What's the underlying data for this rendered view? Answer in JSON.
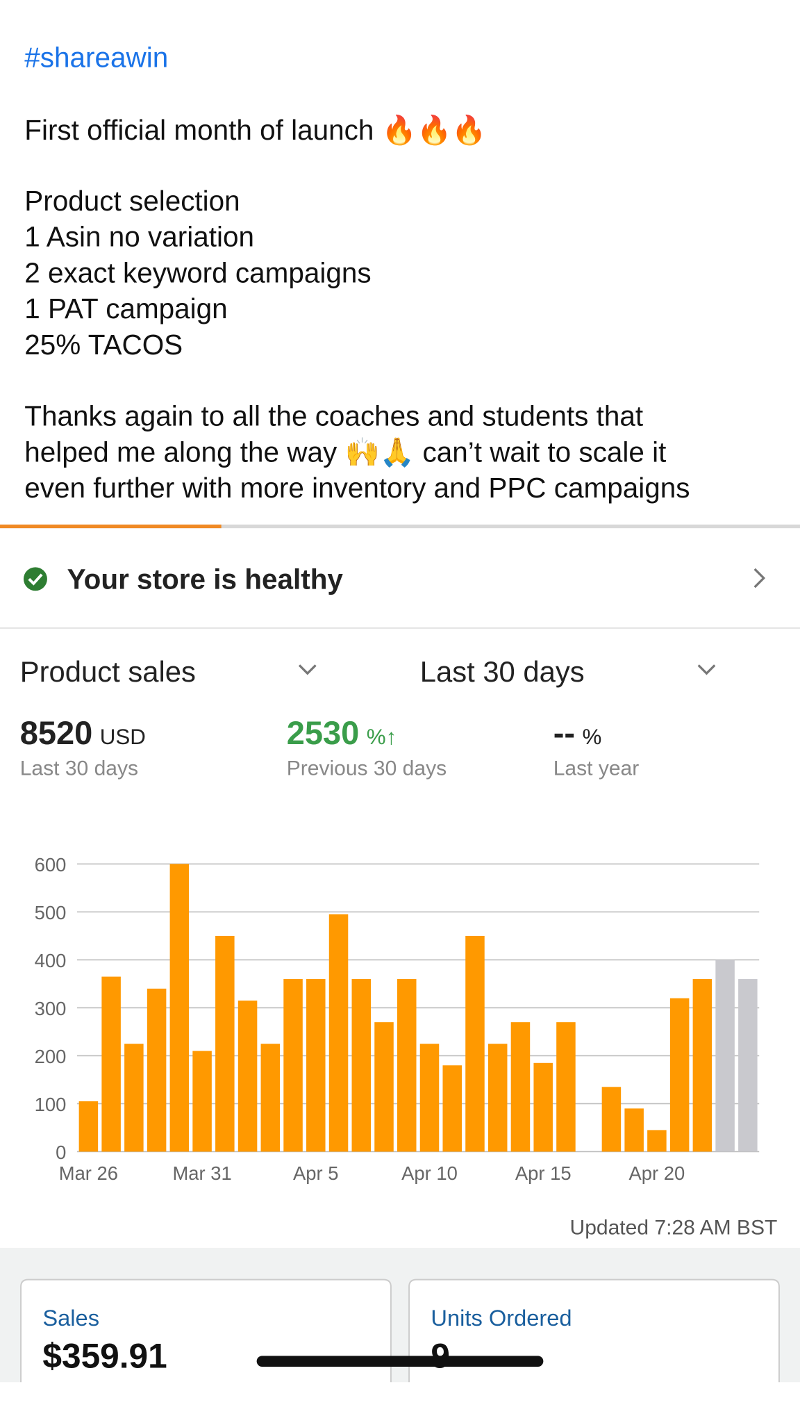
{
  "post": {
    "hashtag": "#shareawin",
    "headline": "First official month of launch 🔥🔥🔥",
    "details": [
      "Product selection",
      "1 Asin no variation",
      "2 exact keyword campaigns",
      "1 PAT campaign",
      "25% TACOS"
    ],
    "thanks": [
      "Thanks again to all the coaches and students that",
      "helped me along the way 🙌🙏 can’t wait to scale it",
      "even further with more inventory and PPC campaigns"
    ]
  },
  "status": {
    "text": "Your store is healthy"
  },
  "selectors": {
    "metric": "Product sales",
    "period": "Last 30 days"
  },
  "metrics": [
    {
      "value": "8520",
      "unit": "USD",
      "caption": "Last 30 days"
    },
    {
      "value": "2530",
      "unit": "%↑",
      "caption": "Previous 30 days"
    },
    {
      "value": "--",
      "unit": "%",
      "caption": "Last year"
    }
  ],
  "chart_data": {
    "type": "bar",
    "categories": [
      "Mar 26",
      null,
      null,
      null,
      null,
      "Mar 31",
      null,
      null,
      null,
      null,
      "Apr 5",
      null,
      null,
      null,
      null,
      "Apr 10",
      null,
      null,
      null,
      null,
      "Apr 15",
      null,
      null,
      null,
      null,
      "Apr 20",
      null,
      null,
      null,
      null
    ],
    "values": [
      105,
      365,
      225,
      340,
      600,
      210,
      450,
      315,
      225,
      360,
      360,
      495,
      360,
      270,
      360,
      225,
      180,
      450,
      225,
      270,
      185,
      270,
      0,
      135,
      90,
      45,
      320,
      360,
      400,
      360
    ],
    "colors": [
      "#ff9900",
      "#ff9900",
      "#ff9900",
      "#ff9900",
      "#ff9900",
      "#ff9900",
      "#ff9900",
      "#ff9900",
      "#ff9900",
      "#ff9900",
      "#ff9900",
      "#ff9900",
      "#ff9900",
      "#ff9900",
      "#ff9900",
      "#ff9900",
      "#ff9900",
      "#ff9900",
      "#ff9900",
      "#ff9900",
      "#ff9900",
      "#ff9900",
      "#ff9900",
      "#ff9900",
      "#ff9900",
      "#ff9900",
      "#ff9900",
      "#ff9900",
      "#c9c9ce",
      "#c9c9ce"
    ],
    "ylim": [
      0,
      600
    ],
    "yticks": [
      0,
      100,
      200,
      300,
      400,
      500,
      600
    ],
    "grid": true
  },
  "updated": "Updated 7:28 AM BST",
  "cards": [
    {
      "label": "Sales",
      "value": "$359.91"
    },
    {
      "label": "Units Ordered",
      "value": "9"
    }
  ]
}
